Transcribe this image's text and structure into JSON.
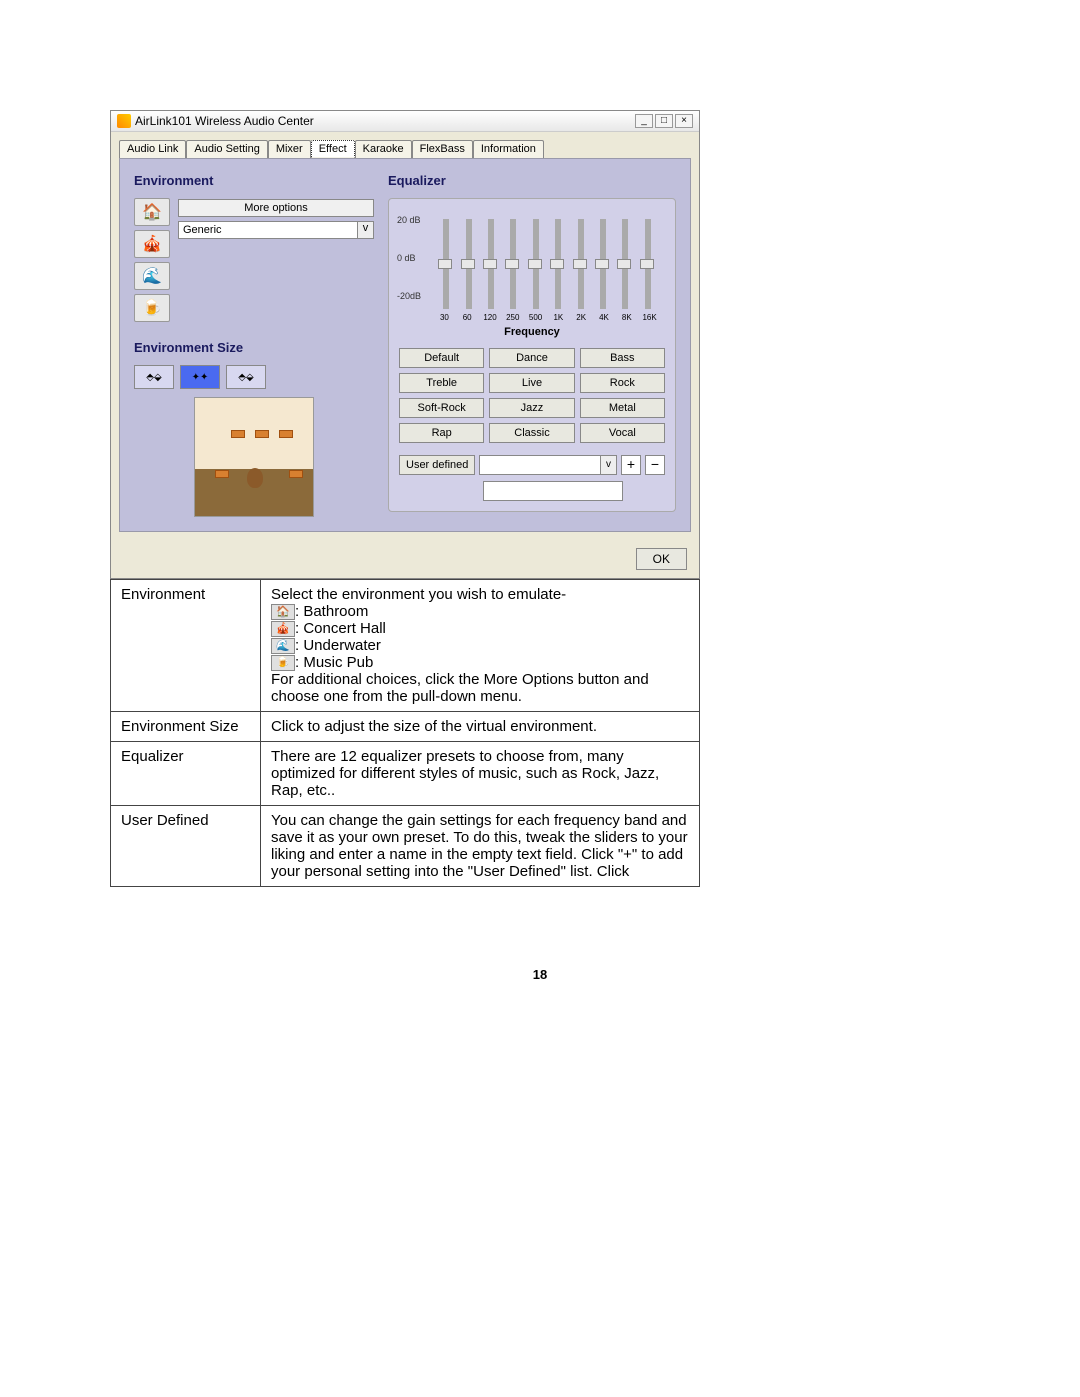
{
  "window": {
    "title": "AirLink101 Wireless Audio Center",
    "min": "_",
    "max": "□",
    "close": "×"
  },
  "tabs": [
    "Audio Link",
    "Audio Setting",
    "Mixer",
    "Effect",
    "Karaoke",
    "FlexBass",
    "Information"
  ],
  "active_tab_index": 3,
  "env": {
    "title": "Environment",
    "more": "More options",
    "dropdown": "Generic",
    "size_title": "Environment Size",
    "size_icons": [
      "⬍⬍",
      "✦✦",
      "⬍⬍"
    ]
  },
  "eq": {
    "title": "Equalizer",
    "y_labels": [
      "20 dB",
      "0 dB",
      "-20dB"
    ],
    "freqs": [
      "30",
      "60",
      "120",
      "250",
      "500",
      "1K",
      "2K",
      "4K",
      "8K",
      "16K"
    ],
    "freq_title": "Frequency",
    "presets": [
      "Default",
      "Dance",
      "Bass",
      "Treble",
      "Live",
      "Rock",
      "Soft-Rock",
      "Jazz",
      "Metal",
      "Rap",
      "Classic",
      "Vocal"
    ],
    "user_defined": "User defined",
    "plus": "+",
    "minus": "−"
  },
  "ok": "OK",
  "table": {
    "rows": [
      {
        "label": "Environment",
        "text1": "Select the environment you wish to emulate-",
        "icons": [
          {
            "g": "🏠",
            "t": ": Bathroom"
          },
          {
            "g": "🎪",
            "t": ": Concert Hall"
          },
          {
            "g": "🌊",
            "t": ": Underwater"
          },
          {
            "g": "🍺",
            "t": ": Music Pub"
          }
        ],
        "text2": "For additional choices, click the More Options button and choose one from the pull-down menu."
      },
      {
        "label": "Environment Size",
        "desc": "Click to adjust the size of the virtual environment."
      },
      {
        "label": "Equalizer",
        "desc": "There are 12 equalizer presets to choose from, many optimized for different styles of music, such as Rock, Jazz, Rap, etc.."
      },
      {
        "label": "User Defined",
        "desc": "You can change the gain settings for each frequency band and save it as your own preset. To do this, tweak the sliders to your liking and enter a name in the empty text field. Click \"+\" to add your personal setting into the \"User Defined\" list. Click"
      }
    ]
  },
  "page_num": "18"
}
